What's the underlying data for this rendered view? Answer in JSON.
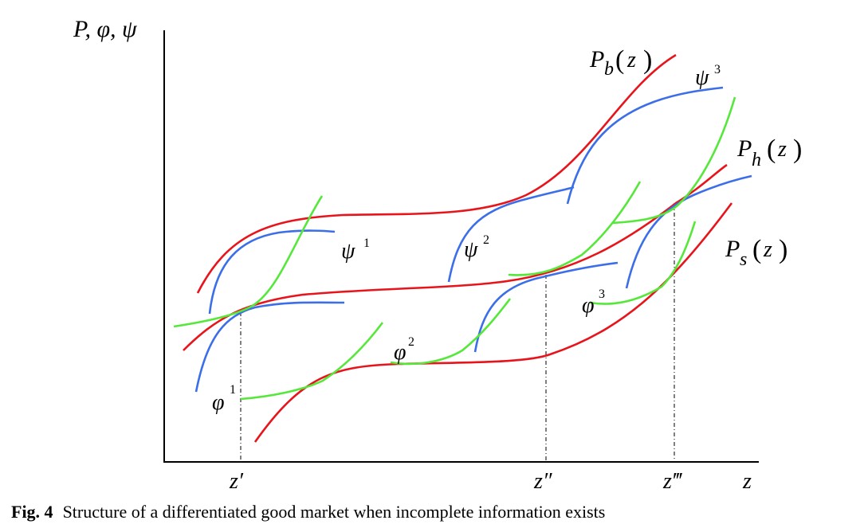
{
  "axes": {
    "y_label": "P, φ, ψ",
    "x_label": "z",
    "x_marks": [
      "z′",
      "z″",
      "z‴"
    ]
  },
  "curves": {
    "Pb": {
      "symbol": "P",
      "subscript": "b",
      "arg": "z"
    },
    "Ph": {
      "symbol": "P",
      "subscript": "h",
      "arg": "z"
    },
    "Ps": {
      "symbol": "P",
      "subscript": "s",
      "arg": "z"
    },
    "psi": [
      {
        "symbol": "ψ",
        "sup": "1"
      },
      {
        "symbol": "ψ",
        "sup": "2"
      },
      {
        "symbol": "ψ",
        "sup": "3"
      }
    ],
    "phi": [
      {
        "symbol": "φ",
        "sup": "1"
      },
      {
        "symbol": "φ",
        "sup": "2"
      },
      {
        "symbol": "φ",
        "sup": "3"
      }
    ]
  },
  "colors": {
    "price_curves": "#e8141b",
    "psi_curves": "#3b6ee8",
    "phi_curves": "#55e83a",
    "axis": "#000000"
  },
  "caption": {
    "label": "Fig. 4",
    "text": "Structure of a differentiated good market when incomplete information exists"
  }
}
